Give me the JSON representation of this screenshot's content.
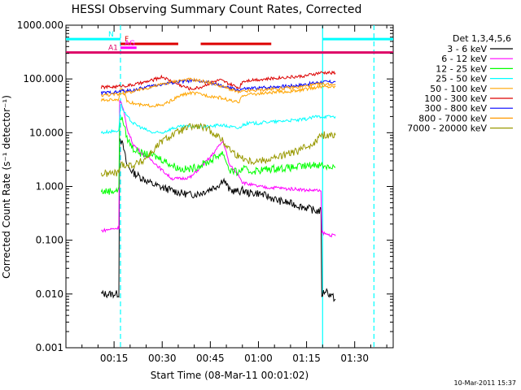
{
  "chart_data": {
    "type": "line",
    "title": "HESSI Observing Summary Count Rates, Corrected",
    "xlabel": "Start Time (08-Mar-11 00:01:02)",
    "ylabel": "Corrected Count Rate (s⁻¹ detector⁻¹)",
    "yscale": "log",
    "xlim": [
      1,
      103
    ],
    "ylim": [
      0.001,
      1000
    ],
    "x_ticks": [
      16,
      31,
      46,
      61,
      76,
      91
    ],
    "x_tick_labels": [
      "00:15",
      "00:30",
      "00:45",
      "01:00",
      "01:15",
      "01:30"
    ],
    "y_ticks": [
      0.001,
      0.01,
      0.1,
      1,
      10,
      100,
      1000
    ],
    "y_tick_labels": [
      "0.001",
      "0.010",
      "0.100",
      "1.000",
      "10.000",
      "100.000",
      "1000.000"
    ],
    "legend_title": "Det 1,3,4,5,6",
    "legend_position": "right",
    "footer_text": "10-Mar-2011 15:37",
    "vertical_markers": [
      {
        "x": 18,
        "color": "#00ffff",
        "style": "dashed"
      },
      {
        "x": 81,
        "color": "#00ffff",
        "style": "solid"
      },
      {
        "x": 97,
        "color": "#00ffff",
        "style": "dashed"
      }
    ],
    "flags": [
      {
        "label": "N",
        "color": "#00ffff",
        "y": 550,
        "segments": [
          [
            1,
            18
          ],
          [
            81,
            103
          ]
        ]
      },
      {
        "label": "F",
        "color": "#dd0000",
        "y": 450,
        "segments": [
          [
            18,
            36
          ],
          [
            43,
            65
          ]
        ]
      },
      {
        "label": "AG",
        "color": "#ff00ff",
        "y": 380,
        "segments": [
          [
            18,
            23
          ]
        ]
      },
      {
        "label": "A1",
        "color": "#dd0066",
        "y": 310,
        "segments": [
          [
            1,
            103
          ]
        ]
      }
    ],
    "x_common": [
      12,
      18,
      20,
      22,
      25,
      28,
      31,
      34,
      37,
      40,
      43,
      46,
      49,
      52,
      55,
      56,
      58,
      61,
      64,
      67,
      70,
      73,
      76,
      79,
      81
    ],
    "series": [
      {
        "name": "3 - 6 keV",
        "color": "#000000",
        "x": [
          12,
          17.5,
          18,
          19,
          20,
          22,
          25,
          28,
          31,
          34,
          37,
          40,
          43,
          46,
          49,
          50,
          52,
          55,
          56,
          58,
          61,
          64,
          67,
          70,
          73,
          76,
          79,
          80.5,
          81,
          82,
          83,
          85
        ],
        "values": [
          0.01,
          0.01,
          8,
          5,
          2.5,
          1.8,
          1.4,
          1.1,
          0.95,
          0.85,
          0.75,
          0.7,
          0.75,
          0.9,
          1.1,
          1.4,
          0.85,
          0.8,
          0.85,
          0.75,
          0.75,
          0.65,
          0.55,
          0.5,
          0.45,
          0.4,
          0.35,
          0.35,
          0.01,
          0.012,
          0.01,
          0.008
        ]
      },
      {
        "name": "6 - 12 keV",
        "color": "#ff00ff",
        "x": [
          12,
          17.5,
          18,
          19,
          20,
          22,
          25,
          28,
          31,
          34,
          37,
          40,
          43,
          46,
          49,
          50,
          52,
          55,
          56,
          58,
          61,
          64,
          67,
          70,
          73,
          76,
          79,
          80.5,
          81,
          82,
          85
        ],
        "values": [
          0.15,
          0.17,
          40,
          25,
          12,
          6,
          4,
          3,
          2,
          1.4,
          1.4,
          1.5,
          2.3,
          3.5,
          6,
          7,
          2.5,
          1.6,
          1.2,
          1.1,
          1.0,
          0.95,
          0.95,
          0.9,
          0.9,
          0.85,
          0.85,
          0.8,
          0.14,
          0.13,
          0.12
        ]
      },
      {
        "name": "12 - 25 keV",
        "color": "#00ff00",
        "x": [
          12,
          17.5,
          18,
          19,
          20,
          22,
          25,
          28,
          31,
          34,
          37,
          40,
          43,
          46,
          49,
          50,
          52,
          55,
          56,
          58,
          61,
          64,
          67,
          70,
          73,
          76,
          79,
          80.5,
          81,
          82,
          85
        ],
        "values": [
          0.8,
          0.85,
          20,
          15,
          8,
          5,
          4,
          3.8,
          3.2,
          2.5,
          2.1,
          2.1,
          2.5,
          3.0,
          4.0,
          4.2,
          2.0,
          1.8,
          2.2,
          1.9,
          2.0,
          2.1,
          2.2,
          2.2,
          2.3,
          2.4,
          2.6,
          2.5,
          2.5,
          2.4,
          2.3
        ]
      },
      {
        "name": "25 - 50 keV",
        "color": "#00ffff",
        "x": [
          12,
          17.5,
          18,
          19,
          20,
          22,
          25,
          28,
          31,
          34,
          37,
          40,
          43,
          46,
          49,
          52,
          55,
          56,
          58,
          61,
          64,
          67,
          70,
          73,
          76,
          79,
          80.5,
          81,
          85
        ],
        "values": [
          10,
          11,
          35,
          25,
          20,
          15,
          12,
          10,
          10,
          12,
          13,
          13,
          13,
          13,
          14,
          13,
          12,
          14,
          15,
          15,
          16,
          16,
          17,
          17,
          18,
          20,
          20,
          20,
          20
        ]
      },
      {
        "name": "50 - 100 keV",
        "color": "#ffa500",
        "x": [
          12,
          17.5,
          18,
          19,
          20,
          22,
          25,
          28,
          31,
          34,
          37,
          40,
          43,
          46,
          49,
          52,
          55,
          56,
          58,
          61,
          64,
          67,
          70,
          73,
          76,
          79,
          80.5,
          81,
          85
        ],
        "values": [
          40,
          42,
          70,
          55,
          40,
          35,
          32,
          32,
          32,
          40,
          50,
          55,
          52,
          48,
          45,
          40,
          36,
          50,
          52,
          53,
          55,
          57,
          58,
          60,
          65,
          70,
          72,
          72,
          72
        ]
      },
      {
        "name": "100 - 300 keV",
        "color": "#dd0000",
        "x": [
          12,
          17.5,
          18,
          19,
          20,
          22,
          25,
          28,
          31,
          34,
          37,
          40,
          43,
          46,
          49,
          52,
          55,
          56,
          58,
          61,
          64,
          67,
          70,
          73,
          76,
          79,
          80.5,
          81,
          85
        ],
        "values": [
          70,
          72,
          75,
          75,
          75,
          78,
          85,
          95,
          110,
          90,
          75,
          65,
          70,
          85,
          95,
          80,
          68,
          90,
          95,
          98,
          100,
          105,
          108,
          110,
          115,
          125,
          130,
          130,
          130
        ]
      },
      {
        "name": "300 - 800 keV",
        "color": "#0000ff",
        "x": [
          12,
          17.5,
          18,
          19,
          20,
          22,
          25,
          28,
          31,
          34,
          37,
          40,
          43,
          46,
          49,
          52,
          55,
          56,
          58,
          61,
          64,
          67,
          70,
          73,
          76,
          79,
          80.5,
          81,
          85
        ],
        "values": [
          55,
          57,
          60,
          60,
          60,
          62,
          68,
          75,
          80,
          85,
          90,
          92,
          90,
          85,
          75,
          68,
          62,
          65,
          66,
          68,
          70,
          72,
          74,
          76,
          80,
          85,
          88,
          88,
          88
        ]
      },
      {
        "name": "800 - 7000 keV",
        "color": "#ff9900",
        "x": [
          12,
          17.5,
          18,
          19,
          20,
          22,
          25,
          28,
          31,
          34,
          37,
          40,
          43,
          46,
          49,
          52,
          55,
          56,
          58,
          61,
          64,
          67,
          70,
          73,
          76,
          79,
          80.5,
          81,
          85
        ],
        "values": [
          50,
          52,
          55,
          55,
          56,
          58,
          65,
          72,
          80,
          88,
          95,
          98,
          92,
          85,
          75,
          65,
          56,
          58,
          60,
          62,
          64,
          66,
          68,
          70,
          74,
          78,
          80,
          80,
          80
        ]
      },
      {
        "name": "7000 - 20000 keV",
        "color": "#999900",
        "x": [
          12,
          17.5,
          18,
          19,
          20,
          22,
          25,
          28,
          31,
          34,
          37,
          40,
          43,
          46,
          49,
          52,
          55,
          56,
          58,
          61,
          64,
          67,
          70,
          73,
          76,
          79,
          80.5,
          81,
          85
        ],
        "values": [
          1.7,
          1.8,
          2.5,
          2.6,
          2.5,
          2.5,
          3.0,
          4.5,
          7,
          9,
          11,
          13,
          13,
          11,
          8,
          5,
          3.5,
          3.5,
          3.0,
          3.0,
          3.2,
          3.5,
          4.0,
          4.5,
          5.5,
          7,
          9,
          9,
          9
        ]
      }
    ]
  }
}
